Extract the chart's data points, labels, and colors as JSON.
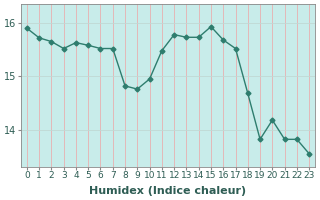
{
  "x": [
    0,
    1,
    2,
    3,
    4,
    5,
    6,
    7,
    8,
    9,
    10,
    11,
    12,
    13,
    14,
    15,
    16,
    17,
    18,
    19,
    20,
    21,
    22,
    23
  ],
  "y": [
    15.9,
    15.72,
    15.65,
    15.52,
    15.63,
    15.58,
    15.52,
    15.52,
    14.82,
    14.76,
    14.95,
    15.48,
    15.78,
    15.73,
    15.73,
    15.93,
    15.68,
    15.52,
    14.68,
    13.82,
    14.18,
    13.82,
    13.82,
    13.55
  ],
  "line_color": "#2e7d6e",
  "marker": "D",
  "marker_size": 2.5,
  "line_width": 1.0,
  "fig_bg_color": "#ffffff",
  "plot_bg_color": "#c8ecea",
  "grid_color_v": "#e8b0b0",
  "grid_color_h": "#c0d8d4",
  "xlabel": "Humidex (Indice chaleur)",
  "xlabel_fontsize": 8,
  "yticks": [
    14,
    15,
    16
  ],
  "ylim": [
    13.3,
    16.35
  ],
  "xlim": [
    -0.5,
    23.5
  ],
  "xtick_labels": [
    "0",
    "1",
    "2",
    "3",
    "4",
    "5",
    "6",
    "7",
    "8",
    "9",
    "10",
    "11",
    "12",
    "13",
    "14",
    "15",
    "16",
    "17",
    "18",
    "19",
    "20",
    "21",
    "22",
    "23"
  ],
  "tick_fontsize": 6.5,
  "label_color": "#2e5d54"
}
